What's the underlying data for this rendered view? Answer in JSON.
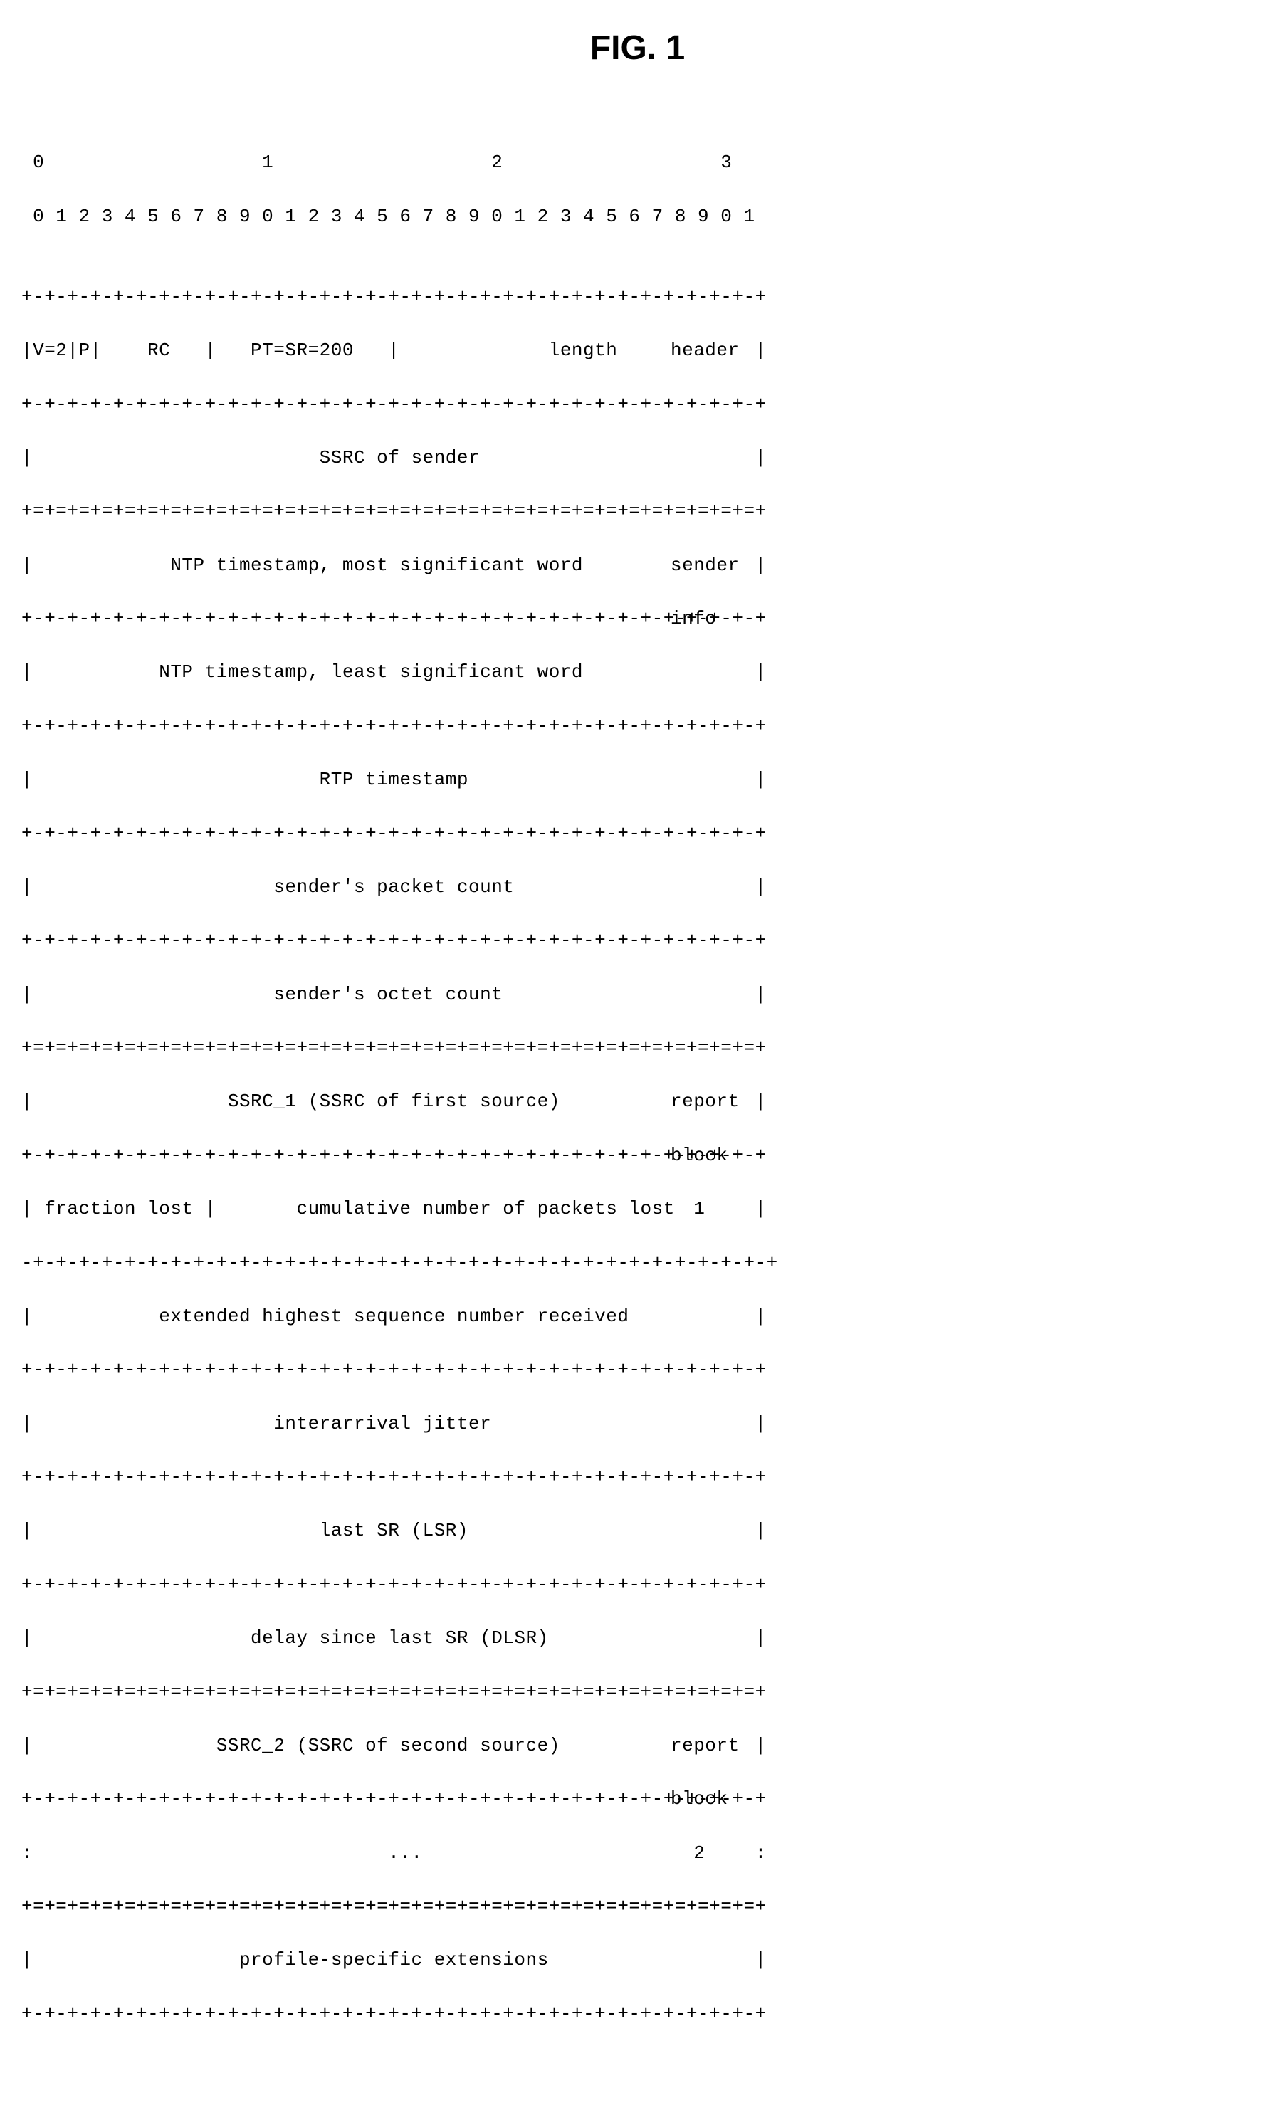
{
  "figure": {
    "title": "FIG. 1",
    "title_fontsize": 48,
    "title_fontweight": 700,
    "font_family_mono": "Courier New",
    "font_family_title": "Arial",
    "fontsize_body": 26,
    "text_color": "#000000",
    "background_color": "#ffffff"
  },
  "bitscale": {
    "top": " 0                   1                   2                   3",
    "bottom": " 0 1 2 3 4 5 6 7 8 9 0 1 2 3 4 5 6 7 8 9 0 1 2 3 4 5 6 7 8 9 0 1"
  },
  "sep": {
    "light": "+-+-+-+-+-+-+-+-+-+-+-+-+-+-+-+-+-+-+-+-+-+-+-+-+-+-+-+-+-+-+-+-+",
    "heavy": "+=+=+=+=+=+=+=+=+=+=+=+=+=+=+=+=+=+=+=+=+=+=+=+=+=+=+=+=+=+=+=+=+",
    "lightNoLead": "-+-+-+-+-+-+-+-+-+-+-+-+-+-+-+-+-+-+-+-+-+-+-+-+-+-+-+-+-+-+-+-+-+"
  },
  "rows": {
    "r1": "|V=2|P|    RC   |   PT=SR=200   |             length            |",
    "r2": "|                         SSRC of sender                        |",
    "r3": "|            NTP timestamp, most significant word               |",
    "r4": "|           NTP timestamp, least significant word               |",
    "r5": "|                         RTP timestamp                         |",
    "r6": "|                     sender's packet count                     |",
    "r7": "|                     sender's octet count                      |",
    "r8": "|                 SSRC_1 (SSRC of first source)                 |",
    "r9": "| fraction lost |       cumulative number of packets lost       |",
    "r10": "|           extended highest sequence number received           |",
    "r11": "|                     interarrival jitter                       |",
    "r12": "|                         last SR (LSR)                         |",
    "r13": "|                   delay since last SR (DLSR)                  |",
    "r14": "|                SSRC_2 (SSRC of second source)                 |",
    "r15": ":                               ...                             :",
    "r16": "|                  profile-specific extensions                  |"
  },
  "labels": {
    "header": "header",
    "sender": "sender",
    "info": "info",
    "report1a": "report",
    "report1b": "block",
    "report1c": "  1",
    "report2a": "report",
    "report2b": "block",
    "report2c": "  2"
  }
}
